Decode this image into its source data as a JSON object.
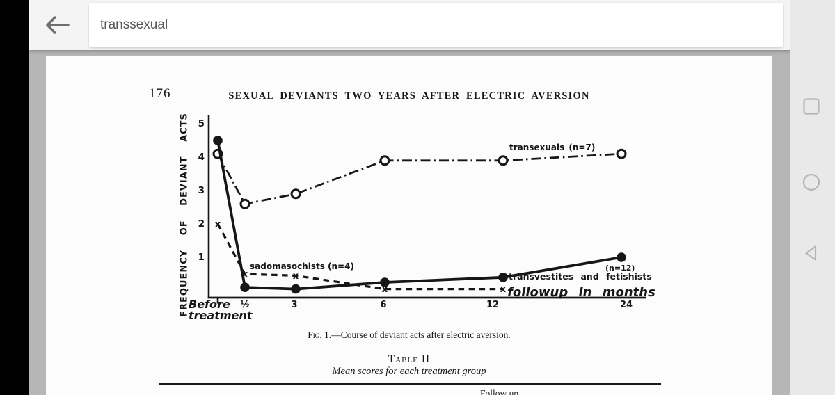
{
  "appbar": {
    "search_value": "transsexual"
  },
  "navbar": {
    "recents": "recents",
    "home": "home",
    "back": "back"
  },
  "document": {
    "page_number": "176",
    "running_title": "SEXUAL DEVIANTS TWO YEARS AFTER ELECTRIC AVERSION",
    "caption_fig": "Fig. 1.",
    "caption_text": "—Course of deviant acts after electric aversion.",
    "table_title": "Table II",
    "table_subtitle": "Mean scores for each treatment group",
    "table_header_partial": "Follow up"
  },
  "chart_data": {
    "type": "line",
    "title": "Course of deviant acts after electric aversion",
    "ylabel": "FREQUENCY OF DEVIANT ACTS",
    "xlabel": "followup in months",
    "x_categories": [
      "Before treatment",
      "½",
      "3",
      "6",
      "12",
      "24"
    ],
    "y_ticks": [
      5,
      4,
      3,
      2,
      1
    ],
    "ylim": [
      0,
      5.2
    ],
    "grid": false,
    "legend_position": "inline-annotations",
    "series": [
      {
        "label": "transexuals (n=7)",
        "n": 7,
        "line": "dashdot",
        "marker": "open-circle",
        "values": [
          4.1,
          2.6,
          2.9,
          3.9,
          3.9,
          4.1
        ]
      },
      {
        "label": "transvestites and fetishists",
        "label_n": "(n=12)",
        "n": 12,
        "line": "solid",
        "marker": "filled-circle",
        "values": [
          4.5,
          0.1,
          0.05,
          0.25,
          0.4,
          1.0
        ]
      },
      {
        "label": "sadomasochists (n=4)",
        "n": 4,
        "line": "dashed",
        "marker": "x",
        "values": [
          2.0,
          0.5,
          0.45,
          0.05,
          0.05,
          null
        ]
      }
    ]
  },
  "colors": {
    "ink": "#161616",
    "page_bg": "#fcfcfc",
    "viewer_bg": "#b6b6b6",
    "appbar_bg": "#f4f4f4",
    "navbar_bg": "#e9e9e9",
    "nav_icon": "#b5b5b5",
    "search_text": "#575757"
  }
}
